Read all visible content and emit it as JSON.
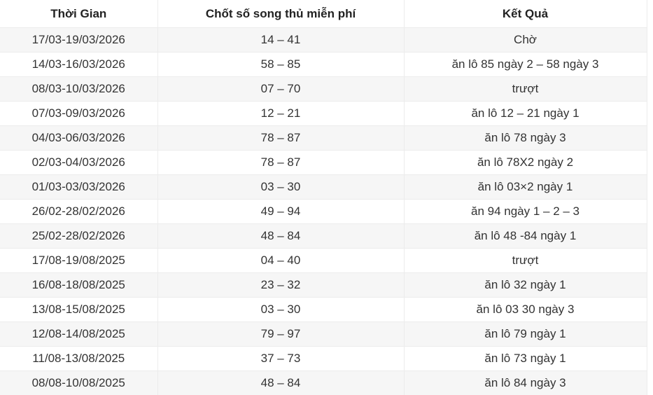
{
  "table": {
    "headers": [
      "Thời Gian",
      "Chốt số song thủ miễn phí",
      "Kết Quả"
    ],
    "rows": [
      [
        "17/03-19/03/2026",
        "14 – 41",
        "Chờ"
      ],
      [
        "14/03-16/03/2026",
        "58 – 85",
        "ăn lô 85 ngày 2 – 58 ngày 3"
      ],
      [
        "08/03-10/03/2026",
        "07 – 70",
        "trượt"
      ],
      [
        "07/03-09/03/2026",
        "12 – 21",
        "ăn lô 12 – 21 ngày 1"
      ],
      [
        "04/03-06/03/2026",
        "78 – 87",
        "ăn lô 78 ngày 3"
      ],
      [
        "02/03-04/03/2026",
        "78 – 87",
        "ăn lô 78X2 ngày 2"
      ],
      [
        "01/03-03/03/2026",
        "03 – 30",
        "ăn lô 03×2 ngày 1"
      ],
      [
        "26/02-28/02/2026",
        "49 – 94",
        "ăn 94 ngày 1 – 2 – 3"
      ],
      [
        "25/02-28/02/2026",
        "48 – 84",
        "ăn lô 48 -84 ngày 1"
      ],
      [
        "17/08-19/08/2025",
        "04 – 40",
        "trượt"
      ],
      [
        "16/08-18/08/2025",
        "23 – 32",
        "ăn lô 32 ngày 1"
      ],
      [
        "13/08-15/08/2025",
        "03 – 30",
        "ăn lô 03 30 ngày 3"
      ],
      [
        "12/08-14/08/2025",
        "79 – 97",
        "ăn lô 79 ngày 1"
      ],
      [
        "11/08-13/08/2025",
        "37 – 73",
        "ăn lô 73 ngày 1"
      ],
      [
        "08/08-10/08/2025",
        "48 – 84",
        "ăn lô 84 ngày 3"
      ]
    ]
  }
}
